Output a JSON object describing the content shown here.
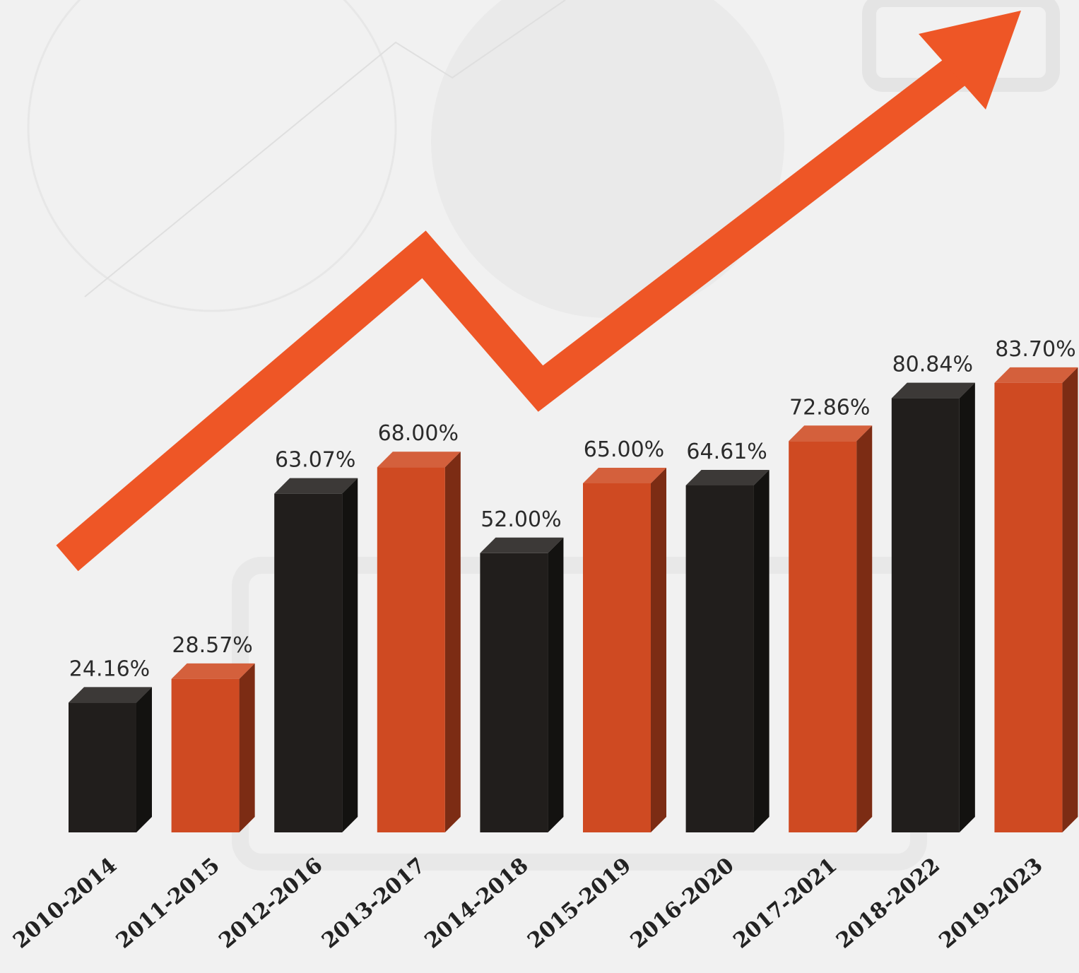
{
  "chart_data": {
    "type": "bar",
    "categories": [
      "2010-2014",
      "2011-2015",
      "2012-2016",
      "2013-2017",
      "2014-2018",
      "2015-2019",
      "2016-2020",
      "2017-2021",
      "2018-2022",
      "2019-2023"
    ],
    "values": [
      24.16,
      28.57,
      63.07,
      68.0,
      52.0,
      65.0,
      64.61,
      72.86,
      80.84,
      83.7
    ],
    "value_labels": [
      "24.16%",
      "28.57%",
      "63.07%",
      "68.00%",
      "52.00%",
      "65.00%",
      "64.61%",
      "72.86%",
      "80.84%",
      "83.70%"
    ],
    "colors": [
      "#211e1c",
      "#cf4a22",
      "#211e1c",
      "#cf4a22",
      "#211e1c",
      "#cf4a22",
      "#211e1c",
      "#cf4a22",
      "#211e1c",
      "#cf4a22"
    ]
  }
}
